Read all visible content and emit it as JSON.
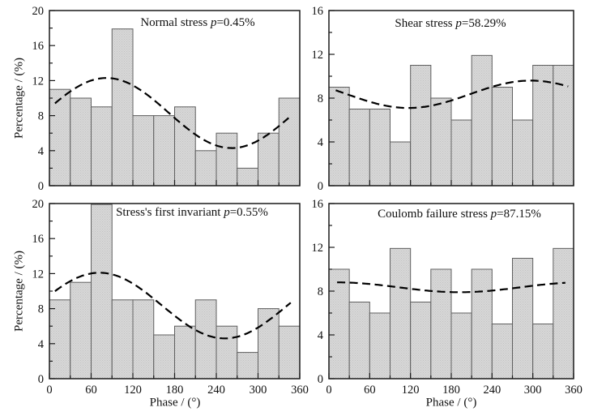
{
  "figure": {
    "ylabel": "Percentage / (%)",
    "xlabel": "Phase / (°)",
    "p_symbol": "p",
    "bg_color": "#ffffff",
    "axis_color": "#1a1a1a",
    "bar_fill": "#d8d8d8",
    "bar_dot": "#c2c2c2",
    "bar_stroke": "#5f5f5f",
    "curve_color": "#000000"
  },
  "chart_data": [
    {
      "id": "normal-stress",
      "type": "bar",
      "title_prefix": "Normal stress ",
      "p_equals": "=0.45%",
      "xlim": [
        0,
        360
      ],
      "ylim": [
        0,
        20
      ],
      "bin_width_deg": 30,
      "bin_centers_deg": [
        15,
        45,
        75,
        105,
        135,
        165,
        195,
        225,
        255,
        285,
        315,
        345
      ],
      "values": [
        11,
        10,
        9,
        17.9,
        8,
        8,
        9,
        4,
        6,
        2,
        6,
        10
      ],
      "y_ticks": [
        0,
        4,
        8,
        12,
        16,
        20
      ],
      "y_minor": [
        2,
        6,
        10,
        14,
        18
      ],
      "x_ticks": [
        0,
        60,
        120,
        180,
        240,
        300,
        360
      ],
      "x_minor": [
        30,
        90,
        150,
        210,
        270,
        330
      ],
      "show_x_labels": false,
      "curve": {
        "model": "value = mean + amplitude*cos(phase - peak_deg)",
        "mean": 8.3,
        "amplitude": 4.0,
        "peak_deg": 82,
        "x_start": 8,
        "x_end": 344,
        "style": "dashed"
      }
    },
    {
      "id": "shear-stress",
      "type": "bar",
      "title_prefix": "Shear stress ",
      "p_equals": "=58.29%",
      "xlim": [
        0,
        360
      ],
      "ylim": [
        0,
        16
      ],
      "bin_width_deg": 30,
      "bin_centers_deg": [
        15,
        45,
        75,
        105,
        135,
        165,
        195,
        225,
        255,
        285,
        315,
        345
      ],
      "values": [
        9,
        7,
        7,
        4,
        11,
        8,
        6,
        11.9,
        9,
        6,
        11,
        11
      ],
      "y_ticks": [
        0,
        4,
        8,
        12,
        16
      ],
      "y_minor": [
        2,
        6,
        10,
        14
      ],
      "x_ticks": [
        0,
        60,
        120,
        180,
        240,
        300,
        360
      ],
      "x_minor": [
        30,
        90,
        150,
        210,
        270,
        330
      ],
      "show_x_labels": false,
      "curve": {
        "model": "value = mean + amplitude*cos(phase - peak_deg)",
        "mean": 8.35,
        "amplitude": 1.25,
        "peak_deg": 297,
        "x_start": 10,
        "x_end": 352,
        "style": "dashed"
      }
    },
    {
      "id": "first-invariant",
      "type": "bar",
      "title_prefix": "Stress's first invariant ",
      "p_equals": "=0.55%",
      "xlim": [
        0,
        360
      ],
      "ylim": [
        0,
        20
      ],
      "bin_width_deg": 30,
      "bin_centers_deg": [
        15,
        45,
        75,
        105,
        135,
        165,
        195,
        225,
        255,
        285,
        315,
        345
      ],
      "values": [
        9,
        11,
        19.9,
        9,
        9,
        5,
        6,
        9,
        6,
        3,
        8,
        6
      ],
      "y_ticks": [
        0,
        4,
        8,
        12,
        16,
        20
      ],
      "y_minor": [
        2,
        6,
        10,
        14,
        18
      ],
      "x_ticks": [
        0,
        60,
        120,
        180,
        240,
        300,
        360
      ],
      "x_minor": [
        30,
        90,
        150,
        210,
        270,
        330
      ],
      "show_x_labels": true,
      "curve": {
        "model": "value = mean + amplitude*cos(phase - peak_deg)",
        "mean": 8.35,
        "amplitude": 3.75,
        "peak_deg": 72,
        "x_start": 8,
        "x_end": 348,
        "style": "dashed"
      }
    },
    {
      "id": "coulomb-failure-stress",
      "type": "bar",
      "title_prefix": "Coulomb failure stress ",
      "p_equals": "=87.15%",
      "xlim": [
        0,
        360
      ],
      "ylim": [
        0,
        16
      ],
      "bin_width_deg": 30,
      "bin_centers_deg": [
        15,
        45,
        75,
        105,
        135,
        165,
        195,
        225,
        255,
        285,
        315,
        345
      ],
      "values": [
        10,
        7,
        6,
        11.9,
        7,
        10,
        6,
        10,
        5,
        11,
        5,
        11.9
      ],
      "y_ticks": [
        0,
        4,
        8,
        12,
        16
      ],
      "y_minor": [
        2,
        6,
        10,
        14
      ],
      "x_ticks": [
        0,
        60,
        120,
        180,
        240,
        300,
        360
      ],
      "x_minor": [
        30,
        90,
        150,
        210,
        270,
        330
      ],
      "show_x_labels": true,
      "curve": {
        "model": "value = mean + amplitude*cos(phase - peak_deg)",
        "mean": 8.35,
        "amplitude": 0.45,
        "peak_deg": 12,
        "x_start": 12,
        "x_end": 350,
        "style": "dashed"
      }
    }
  ]
}
